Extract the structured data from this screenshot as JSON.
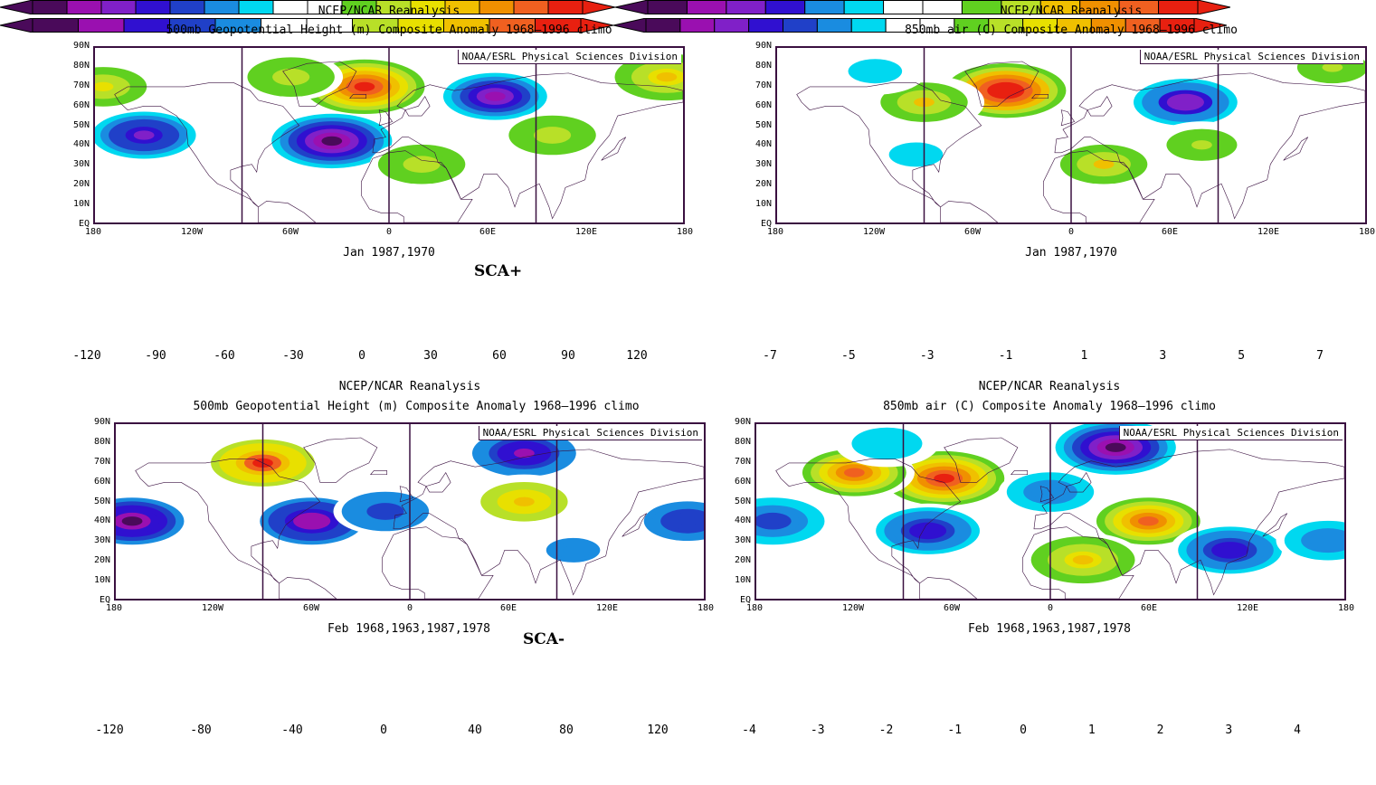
{
  "panels": [
    {
      "id": "p1",
      "title1": "NCEP/NCAR Reanalysis",
      "title2": "500mb Geopotential Height (m) Composite Anomaly 1968–1996 climo",
      "credit": "NOAA/ESRL Physical Sciences Division",
      "dates": "Jan 1987,1970",
      "case_label": "SCA+",
      "lat_labels": [
        "90N",
        "80N",
        "70N",
        "60N",
        "50N",
        "40N",
        "30N",
        "20N",
        "10N",
        "EQ"
      ],
      "lon_labels": [
        "180",
        "120W",
        "60W",
        "0",
        "60E",
        "120E",
        "180"
      ],
      "anomalies": [
        {
          "lon": -35,
          "lat": 42,
          "value": -115
        },
        {
          "lon": -150,
          "lat": 45,
          "value": -80
        },
        {
          "lon": 65,
          "lat": 65,
          "value": -95
        },
        {
          "lon": -15,
          "lat": 70,
          "value": 120
        },
        {
          "lon": -60,
          "lat": 75,
          "value": 40
        },
        {
          "lon": 20,
          "lat": 30,
          "value": 40
        },
        {
          "lon": 100,
          "lat": 45,
          "value": 35
        },
        {
          "lon": 170,
          "lat": 75,
          "value": 60
        },
        {
          "lon": -175,
          "lat": 70,
          "value": 45
        }
      ]
    },
    {
      "id": "p2",
      "title1": "NCEP/NCAR Reanalysis",
      "title2": "850mb air (C) Composite Anomaly 1968–1996 climo",
      "credit": "NOAA/ESRL Physical Sciences Division",
      "dates": "Jan 1987,1970",
      "case_label": "",
      "lat_labels": [
        "90N",
        "80N",
        "70N",
        "60N",
        "50N",
        "40N",
        "30N",
        "20N",
        "10N",
        "EQ"
      ],
      "lon_labels": [
        "180",
        "120W",
        "60W",
        "0",
        "60E",
        "120E",
        "180"
      ],
      "anomalies": [
        {
          "lon": -40,
          "lat": 68,
          "value": 7
        },
        {
          "lon": 70,
          "lat": 62,
          "value": -5
        },
        {
          "lon": -90,
          "lat": 62,
          "value": 3
        },
        {
          "lon": 20,
          "lat": 30,
          "value": 3
        },
        {
          "lon": 80,
          "lat": 40,
          "value": 2
        },
        {
          "lon": -155,
          "lat": 40,
          "value": -1
        },
        {
          "lon": -95,
          "lat": 35,
          "value": -1.5
        },
        {
          "lon": -120,
          "lat": 78,
          "value": -1.5
        },
        {
          "lon": 160,
          "lat": 80,
          "value": 2
        }
      ]
    },
    {
      "id": "p3",
      "title1": "NCEP/NCAR Reanalysis",
      "title2": "500mb Geopotential Height (m) Composite Anomaly 1968–1996 climo",
      "credit": "NOAA/ESRL Physical Sciences Division",
      "dates": "Feb 1968,1963,1987,1978",
      "case_label": "SCA-",
      "lat_labels": [
        "90N",
        "80N",
        "70N",
        "60N",
        "50N",
        "40N",
        "30N",
        "20N",
        "10N",
        "EQ"
      ],
      "lon_labels": [
        "180",
        "120W",
        "60W",
        "0",
        "60E",
        "120E",
        "180"
      ],
      "anomalies": [
        {
          "lon": -90,
          "lat": 70,
          "value": 100
        },
        {
          "lon": -60,
          "lat": 40,
          "value": -100
        },
        {
          "lon": -170,
          "lat": 40,
          "value": -110
        },
        {
          "lon": 70,
          "lat": 75,
          "value": -90
        },
        {
          "lon": 70,
          "lat": 50,
          "value": 60
        },
        {
          "lon": 170,
          "lat": 40,
          "value": -60
        },
        {
          "lon": -15,
          "lat": 45,
          "value": -50
        },
        {
          "lon": 100,
          "lat": 25,
          "value": -30
        }
      ]
    },
    {
      "id": "p4",
      "title1": "NCEP/NCAR Reanalysis",
      "title2": "850mb air (C) Composite Anomaly 1968–1996 climo",
      "credit": "NOAA/ESRL Physical Sciences Division",
      "dates": "Feb 1968,1963,1987,1978",
      "case_label": "",
      "lat_labels": [
        "90N",
        "80N",
        "70N",
        "60N",
        "50N",
        "40N",
        "30N",
        "20N",
        "10N",
        "EQ"
      ],
      "lon_labels": [
        "180",
        "120W",
        "60W",
        "0",
        "60E",
        "120E",
        "180"
      ],
      "anomalies": [
        {
          "lon": -65,
          "lat": 62,
          "value": 4
        },
        {
          "lon": -120,
          "lat": 65,
          "value": 3
        },
        {
          "lon": 40,
          "lat": 78,
          "value": -4
        },
        {
          "lon": 60,
          "lat": 40,
          "value": 3
        },
        {
          "lon": 20,
          "lat": 20,
          "value": 2
        },
        {
          "lon": -75,
          "lat": 35,
          "value": -2.5
        },
        {
          "lon": 110,
          "lat": 25,
          "value": -2.5
        },
        {
          "lon": -170,
          "lat": 40,
          "value": -2
        },
        {
          "lon": 170,
          "lat": 30,
          "value": -1.5
        },
        {
          "lon": 0,
          "lat": 55,
          "value": -1.5
        },
        {
          "lon": -100,
          "lat": 80,
          "value": -1
        }
      ]
    }
  ],
  "colorbars": [
    {
      "id": "cb1",
      "labels": [
        "-120",
        "-90",
        "-60",
        "-30",
        "0",
        "30",
        "60",
        "90",
        "120"
      ],
      "contour_levels": [
        -120,
        -105,
        -90,
        -75,
        -60,
        -45,
        -30,
        -15,
        0,
        15,
        30,
        45,
        60,
        75,
        90,
        105,
        120
      ]
    },
    {
      "id": "cb2",
      "labels": [
        "-7",
        "-5",
        "-3",
        "-1",
        "1",
        "3",
        "5",
        "7"
      ],
      "contour_levels": [
        -7,
        -6,
        -5,
        -4,
        -3,
        -2,
        -1,
        0,
        1,
        2,
        3,
        4,
        5,
        6,
        7
      ]
    },
    {
      "id": "cb3",
      "labels": [
        "-120",
        "-80",
        "-40",
        "0",
        "40",
        "80",
        "120"
      ],
      "contour_levels": [
        -120,
        -100,
        -80,
        -60,
        -40,
        -20,
        0,
        20,
        40,
        60,
        80,
        100,
        120
      ]
    },
    {
      "id": "cb4",
      "labels": [
        "-4",
        "-3",
        "-2",
        "-1",
        "0",
        "1",
        "2",
        "3",
        "4"
      ],
      "contour_levels": [
        -4,
        -3.5,
        -3,
        -2.5,
        -2,
        -1.5,
        -1,
        -0.5,
        0,
        0.5,
        1,
        1.5,
        2,
        2.5,
        3,
        3.5,
        4
      ]
    }
  ],
  "colors": {
    "frame": "#3a1040",
    "palette": [
      "#4a0a5a",
      "#9a10b0",
      "#8020c8",
      "#3010d0",
      "#2040c8",
      "#1a8ce0",
      "#00d8f0",
      "#ffffff",
      "#ffffff",
      "#60d020",
      "#b8e028",
      "#e8e000",
      "#f0c000",
      "#f09000",
      "#f06020",
      "#e82010"
    ]
  }
}
